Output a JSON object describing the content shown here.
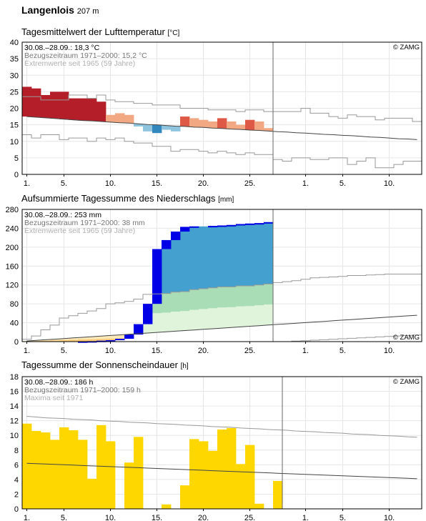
{
  "station": {
    "name": "Langenlois",
    "elevation": "207 m"
  },
  "colors": {
    "temp_extreme": "#b41e28",
    "temp_strong": "#de5a46",
    "temp_warm": "#f2a882",
    "temp_cool": "#8ec4de",
    "temp_cold": "#3288bd",
    "temp_very_cold": "#1f5fa0",
    "precip_bar": "#0000e6",
    "precip_above": "#43a0cf",
    "precip_mid": "#a8ddb5",
    "precip_low": "#e0f3db",
    "precip_below_dark": "#f9c978",
    "precip_below_light": "#fde9b8",
    "sun_bar": "#ffd700"
  },
  "chart_data": [
    {
      "type": "bar",
      "title": "Tagesmittelwert der Lufttemperatur",
      "unit": "[°C]",
      "info": [
        "30.08.–28.09.: 18,3 °C",
        "Bezugszeitraum 1971–2000: 15,2 °C",
        "Extremwerte seit 1965 (59 Jahre)"
      ],
      "credit": "© ZAMG",
      "ylim": [
        0,
        40
      ],
      "yticks": [
        0,
        5,
        10,
        15,
        20,
        25,
        30,
        35,
        40
      ],
      "xticks": [
        "1.",
        "5.",
        "10.",
        "15.",
        "20.",
        "25.",
        "1.",
        "5.",
        "10."
      ],
      "grid": true,
      "series": [
        {
          "name": "Tagesmittel",
          "values": [
            26.5,
            26,
            24,
            25,
            25,
            23,
            23,
            23,
            22,
            18,
            18.5,
            18,
            14.5,
            13,
            12.5,
            13.5,
            13,
            17.5,
            17,
            16.5,
            16,
            17,
            16,
            15,
            16.5,
            16,
            14
          ]
        },
        {
          "name": "Mittel 1971–2000",
          "values": [
            17.5,
            17.3,
            17.1,
            16.9,
            16.7,
            16.5,
            16.3,
            16.2,
            16.0,
            15.8,
            15.6,
            15.5,
            15.3,
            15.1,
            15.0,
            14.8,
            14.6,
            14.5,
            14.3,
            14.2,
            14.0,
            13.9,
            13.7,
            13.6,
            13.4,
            13.3,
            13.1,
            12.9,
            12.8,
            12.6,
            12.5,
            12.3,
            12.1,
            12.0,
            11.8,
            11.7,
            11.5,
            11.3,
            11.2,
            11.0,
            10.8,
            10.7,
            10.5
          ]
        },
        {
          "name": "Maximum",
          "values": [
            23.5,
            23.5,
            22.5,
            22.5,
            22.5,
            24,
            24,
            23,
            24,
            22.5,
            22,
            22,
            21.5,
            21.5,
            21,
            21,
            21,
            20,
            20,
            20,
            19.5,
            19.5,
            19.5,
            19,
            19.5,
            19.5,
            19,
            19,
            19,
            19,
            20,
            18.5,
            18.5,
            17.5,
            17,
            18,
            17.5,
            17.5,
            16.5,
            17,
            17,
            17,
            16
          ]
        },
        {
          "name": "Minimum",
          "values": [
            12,
            11,
            12,
            12,
            10.5,
            11,
            11,
            10,
            11,
            10.5,
            11,
            10,
            9.5,
            9.5,
            8.5,
            8.5,
            7,
            7.5,
            7.5,
            7,
            6.5,
            7,
            6.5,
            6,
            6.5,
            6,
            6,
            4.5,
            4,
            5,
            5,
            4.5,
            4.5,
            5,
            5,
            3,
            4,
            5,
            2,
            2,
            3,
            4,
            4
          ]
        }
      ]
    },
    {
      "type": "bar",
      "title": "Aufsummierte Tagessumme des Niederschlags",
      "unit": "[mm]",
      "info": [
        "30.08.–28.09.: 253 mm",
        "Bezugszeitraum 1971–2000: 38 mm",
        "Extremwerte seit 1965 (59 Jahre)"
      ],
      "credit": "© ZAMG",
      "ylim": [
        0,
        280
      ],
      "yticks": [
        0,
        40,
        80,
        120,
        160,
        200,
        240,
        280
      ],
      "xticks": [
        "1.",
        "5.",
        "10.",
        "15.",
        "20.",
        "25.",
        "1.",
        "5.",
        "10."
      ],
      "grid": true,
      "series": [
        {
          "name": "Niederschlagssumme",
          "values": [
            0,
            0,
            0,
            0,
            0,
            0,
            0.5,
            1,
            2,
            3,
            6,
            15,
            37,
            80,
            196,
            215,
            233,
            243,
            244,
            244,
            245,
            246,
            247,
            249,
            250,
            251,
            253
          ]
        },
        {
          "name": "Mittel 1971–2000",
          "values": [
            1.3,
            2.6,
            3.9,
            5.2,
            6.5,
            7.8,
            9.1,
            10.4,
            11.7,
            13,
            14.3,
            15.6,
            16.9,
            18.2,
            19.5,
            20.8,
            22.1,
            23.4,
            24.7,
            26,
            27.3,
            28.6,
            29.9,
            31.2,
            32.5,
            33.8,
            35.1,
            36.4,
            37.7,
            39,
            40.3,
            41.6,
            42.9,
            44.2,
            45.5,
            46.8,
            48.1,
            49.4,
            50.7,
            52,
            53.3,
            54.6,
            55.9
          ]
        },
        {
          "name": "Maximum",
          "values": [
            5,
            12,
            25,
            35,
            50,
            55,
            60,
            65,
            70,
            80,
            82,
            85,
            90,
            100,
            101,
            102,
            105,
            106,
            110,
            112,
            114,
            116,
            116,
            118,
            118,
            120,
            122,
            125,
            127,
            129,
            132,
            135,
            136,
            137,
            138,
            140,
            140,
            141,
            142,
            143,
            143,
            143,
            143
          ]
        },
        {
          "name": "Minimum",
          "values": [
            0,
            0,
            0,
            0,
            0,
            0,
            0,
            0,
            0,
            0,
            0,
            0,
            0,
            0,
            0,
            0,
            0,
            0,
            0,
            0,
            0,
            0,
            0,
            0,
            0,
            0,
            0,
            0,
            0,
            1,
            2,
            3,
            4,
            5,
            6,
            7,
            8,
            9,
            10,
            11,
            12,
            13,
            14
          ]
        }
      ]
    },
    {
      "type": "bar",
      "title": "Tagessumme der Sonnenscheindauer",
      "unit": "[h]",
      "info": [
        "30.08.–28.09.: 186 h",
        "Bezugszeitraum 1971–2000: 159 h",
        "Maxima seit 1971"
      ],
      "credit": "© ZAMG",
      "ylim": [
        0,
        18
      ],
      "yticks": [
        0,
        2,
        4,
        6,
        8,
        10,
        12,
        14,
        16,
        18
      ],
      "xticks": [
        "1.",
        "5.",
        "10.",
        "15.",
        "20.",
        "25.",
        "1.",
        "5.",
        "10."
      ],
      "grid": true,
      "series": [
        {
          "name": "Sonnenscheindauer",
          "values": [
            11.6,
            10.6,
            10.4,
            9.4,
            11.1,
            10.7,
            9.4,
            4.1,
            11.4,
            9.2,
            0,
            6.3,
            9.8,
            0,
            0,
            0.6,
            0,
            3.2,
            9.5,
            9.2,
            7.9,
            10.8,
            11.0,
            6.1,
            8.7,
            0.7,
            0,
            3.8
          ]
        },
        {
          "name": "Mittel 1971–2000",
          "values": [
            6.2,
            6.15,
            6.1,
            6.05,
            6.0,
            5.95,
            5.9,
            5.85,
            5.8,
            5.75,
            5.7,
            5.65,
            5.6,
            5.55,
            5.5,
            5.45,
            5.4,
            5.35,
            5.3,
            5.25,
            5.2,
            5.15,
            5.1,
            5.05,
            5.0,
            4.95,
            4.9,
            4.85,
            4.8,
            4.75,
            4.7,
            4.65,
            4.6,
            4.55,
            4.5,
            4.45,
            4.4,
            4.35,
            4.3,
            4.25,
            4.2,
            4.15,
            4.1
          ]
        },
        {
          "name": "Maximum",
          "values": [
            12.6,
            12.5,
            12.4,
            12.35,
            12.3,
            12.2,
            12.15,
            12.1,
            12.0,
            11.95,
            11.9,
            11.8,
            11.75,
            11.7,
            11.6,
            11.55,
            11.5,
            11.4,
            11.35,
            11.3,
            11.2,
            11.15,
            11.1,
            11.0,
            10.95,
            10.9,
            10.8,
            10.75,
            10.7,
            10.6,
            10.55,
            10.5,
            10.4,
            10.35,
            10.3,
            10.2,
            10.15,
            10.1,
            10.0,
            9.95,
            9.9,
            9.8,
            9.75
          ]
        }
      ]
    }
  ]
}
